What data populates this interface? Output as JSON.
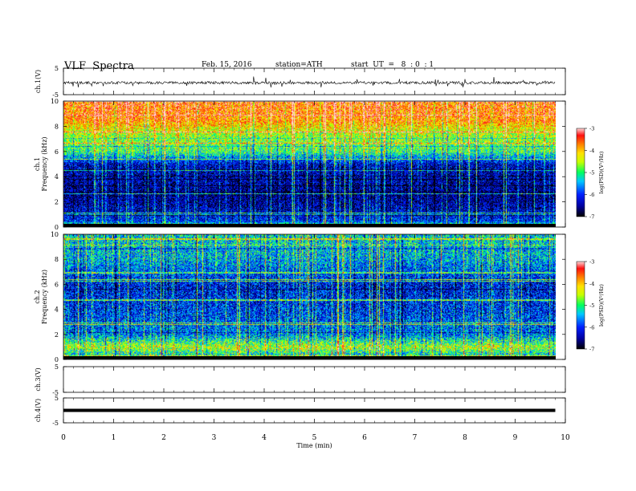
{
  "header": {
    "title": "VLF  Spectra",
    "date": "Feb. 15, 2016",
    "station": "station=ATH",
    "start_ut": "start  UT  =   8  : 0  : 1"
  },
  "chart_data": [
    {
      "type": "line",
      "panel": "ch1-waveform",
      "ylabel": "ch.1(V)",
      "ylim": [
        -5,
        5
      ],
      "yticks": [
        "-5",
        "5"
      ],
      "xlim": [
        0,
        10
      ],
      "baseline": -0.5,
      "amplitude_range": [
        -2,
        1.5
      ],
      "color": "#000000"
    },
    {
      "type": "heatmap",
      "panel": "ch1-spectrogram",
      "ylabel_top": "ch.1",
      "ylabel": "Frequency  (kHz)",
      "ylim": [
        0,
        10
      ],
      "yticks": [
        "0",
        "2",
        "4",
        "6",
        "8",
        "10"
      ],
      "xlim": [
        0,
        10
      ],
      "data_end_min": 9.8,
      "colorbar": {
        "label": "log(PSD)(V²/Hz)",
        "range": [
          -7,
          -3
        ],
        "ticks": [
          "-3",
          "-4",
          "-5",
          "-6",
          "-7"
        ]
      },
      "bands_kHz_logPSD": [
        [
          0.0,
          -4.5
        ],
        [
          0.5,
          -6.0
        ],
        [
          1.2,
          -6.3
        ],
        [
          2.5,
          -6.6
        ],
        [
          5.0,
          -6.3
        ],
        [
          6.0,
          -5.0
        ],
        [
          7.5,
          -4.5
        ],
        [
          8.5,
          -3.8
        ],
        [
          10.0,
          -3.6
        ]
      ],
      "noise_level": 0.45
    },
    {
      "type": "heatmap",
      "panel": "ch2-spectrogram",
      "ylabel_top": "ch.2",
      "ylabel": "Frequency  (kHz)",
      "ylim": [
        0,
        10
      ],
      "yticks": [
        "0",
        "2",
        "4",
        "6",
        "8",
        "10"
      ],
      "xlim": [
        0,
        10
      ],
      "data_end_min": 9.8,
      "colorbar": {
        "label": "log(PSD)(V²/Hz)",
        "range": [
          -7,
          -3
        ],
        "ticks": [
          "-3",
          "-4",
          "-5",
          "-6",
          "-7"
        ]
      },
      "bands_kHz_logPSD": [
        [
          0.0,
          -5.0
        ],
        [
          0.5,
          -5.2
        ],
        [
          1.0,
          -4.5
        ],
        [
          2.0,
          -5.7
        ],
        [
          4.0,
          -6.0
        ],
        [
          6.0,
          -6.2
        ],
        [
          8.0,
          -5.5
        ],
        [
          10.0,
          -5.3
        ]
      ],
      "noise_level": 0.5
    },
    {
      "type": "line",
      "panel": "ch3-waveform",
      "ylabel": "ch.3(V)",
      "ylim": [
        -5,
        5
      ],
      "yticks": [
        "-5",
        "5"
      ],
      "xlim": [
        0,
        10
      ],
      "values": []
    },
    {
      "type": "line",
      "panel": "ch4-waveform",
      "ylabel": "ch.4(V)",
      "ylim": [
        -5,
        5
      ],
      "yticks": [
        "-5",
        "5"
      ],
      "xlim": [
        0,
        10
      ],
      "constant_value": 0,
      "data_end_min": 9.8,
      "color": "#000000"
    }
  ],
  "xaxis": {
    "label": "Time  (min)",
    "ticks": [
      "0",
      "1",
      "2",
      "3",
      "4",
      "5",
      "6",
      "7",
      "8",
      "9",
      "10"
    ]
  }
}
